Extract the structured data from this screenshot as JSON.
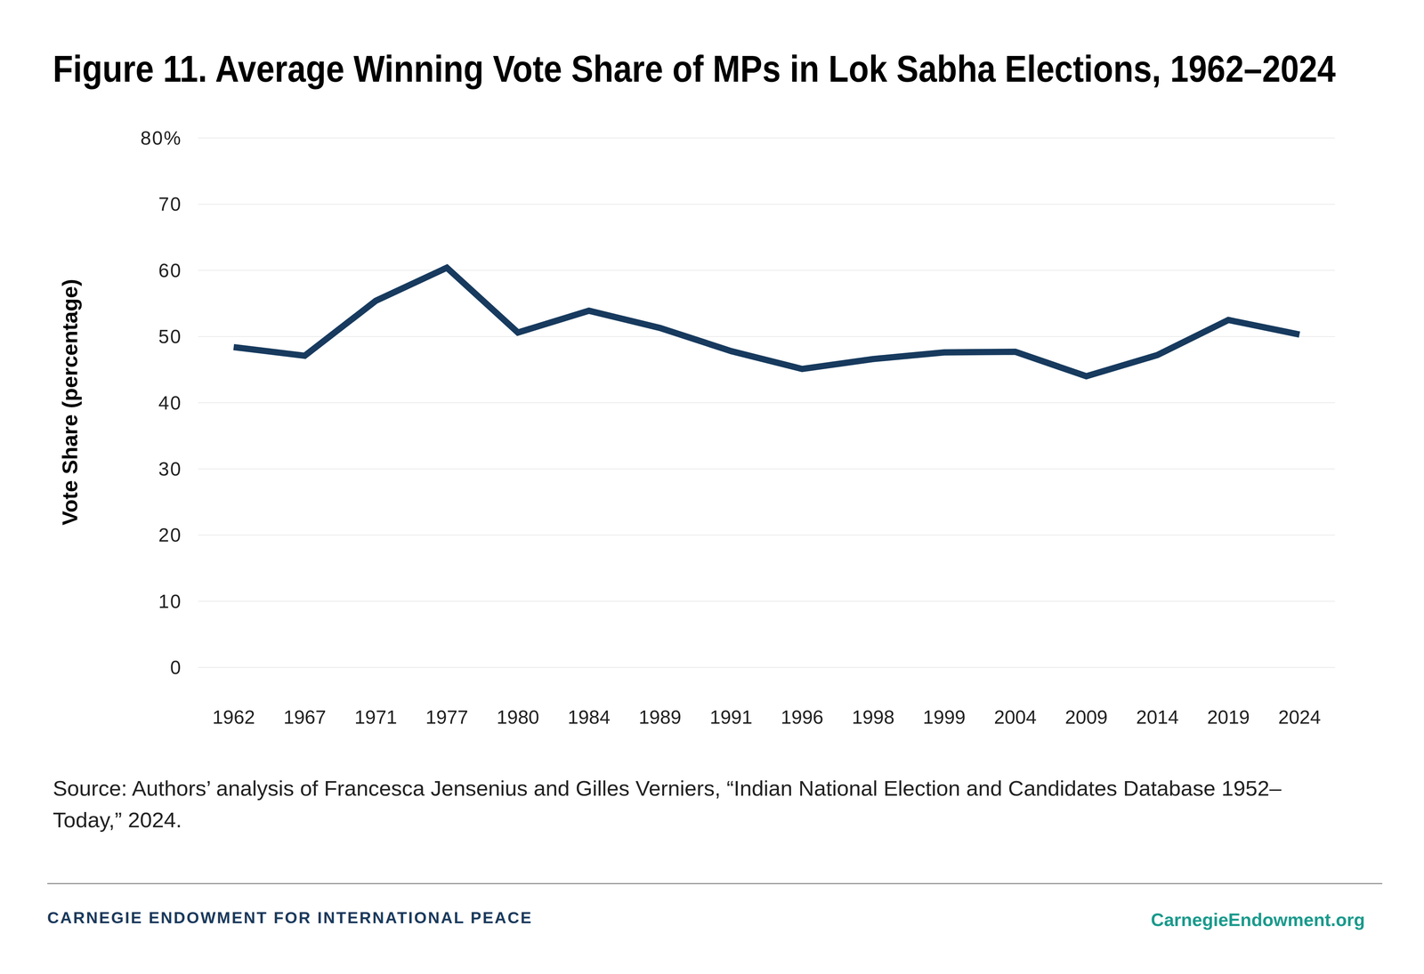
{
  "chart_data": {
    "type": "line",
    "title": "Figure 11. Average Winning Vote Share of MPs in Lok Sabha Elections, 1962–2024",
    "y_label": "Vote Share (percentage)",
    "categories": [
      "1962",
      "1967",
      "1971",
      "1977",
      "1980",
      "1984",
      "1989",
      "1991",
      "1996",
      "1998",
      "1999",
      "2004",
      "2009",
      "2014",
      "2019",
      "2024"
    ],
    "values": [
      48.4,
      47.1,
      55.4,
      60.4,
      50.6,
      53.9,
      51.3,
      47.8,
      45.1,
      46.6,
      47.6,
      47.7,
      44.0,
      47.2,
      52.5,
      50.3
    ],
    "color": "#173a5e",
    "ylim": [
      0,
      80
    ],
    "yticks": [
      0,
      10,
      20,
      30,
      40,
      50,
      60,
      70,
      {
        "value": 80,
        "label": "80%"
      }
    ],
    "grid": true,
    "source": "Source: Authors’ analysis of Francesca Jensenius and Gilles Verniers, “Indian National Election and Candidates Database 1952–Today,” 2024."
  },
  "footer": {
    "publisher": "CARNEGIE ENDOWMENT FOR INTERNATIONAL PEACE",
    "website": "CarnegieEndowment.org"
  }
}
